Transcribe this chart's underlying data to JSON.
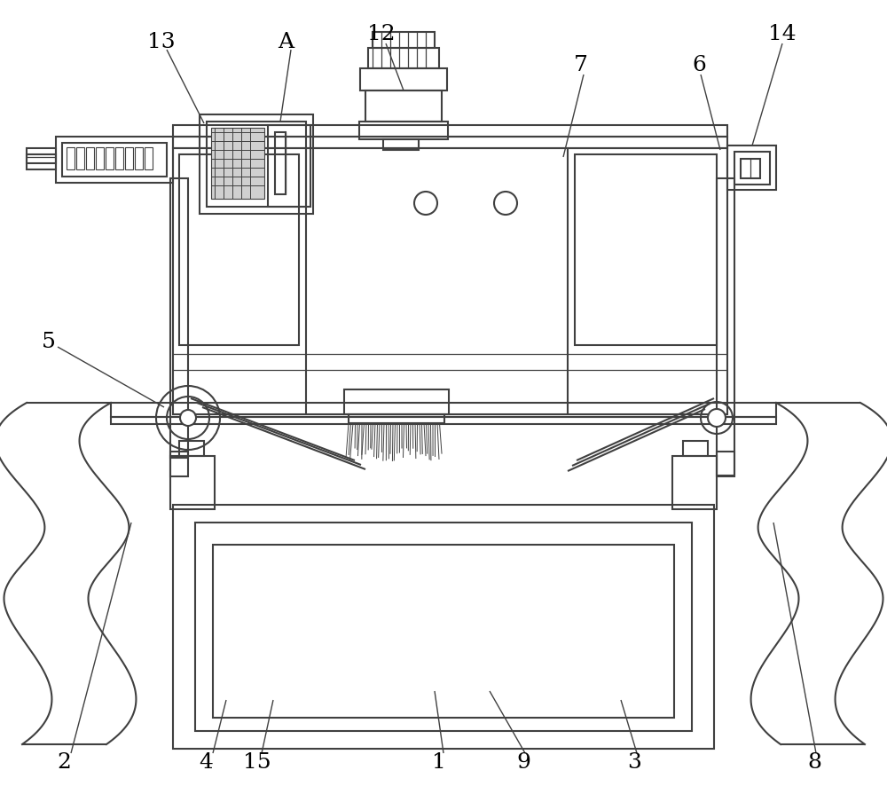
{
  "bg_color": "#ffffff",
  "lc": "#404040",
  "lw": 1.5,
  "tlw": 0.9,
  "font_size": 18,
  "ann_lw": 1.0
}
